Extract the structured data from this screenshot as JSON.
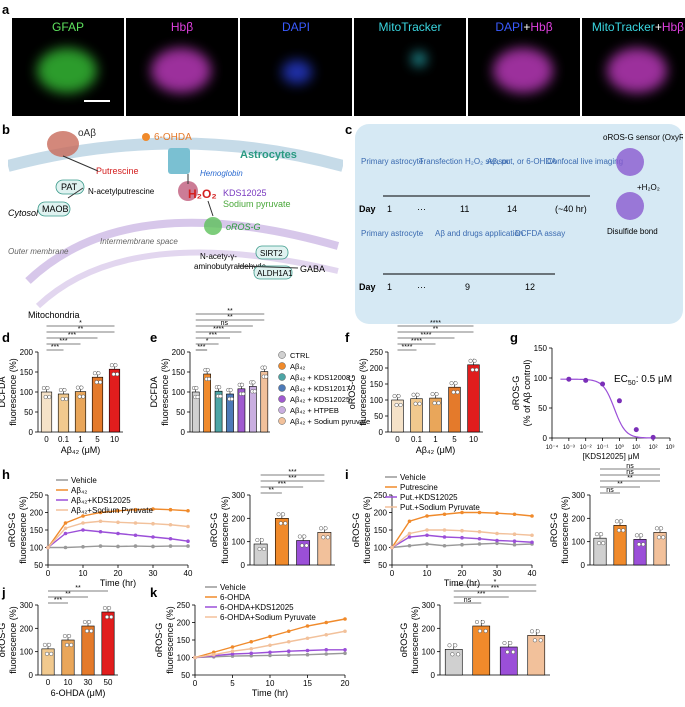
{
  "panel_labels": {
    "a": "a",
    "b": "b",
    "c": "c",
    "d": "d",
    "e": "e",
    "f": "f",
    "g": "g",
    "h": "h",
    "i": "i",
    "j": "j",
    "k": "k"
  },
  "panel_a": {
    "channels": [
      {
        "label": "GFAP",
        "color": "#5ee35e"
      },
      {
        "label": "Hbβ",
        "color": "#e040e0"
      },
      {
        "label": "DAPI",
        "color": "#3a5bff"
      },
      {
        "label": "MitoTracker",
        "color": "#3ad6e0"
      },
      {
        "label_a": "DAPI",
        "label_plus": "+",
        "label_b": "Hbβ"
      },
      {
        "label_a": "MitoTracker",
        "label_plus": "+",
        "label_b": "Hbβ"
      }
    ]
  },
  "panel_b": {
    "oabeta": "oAβ",
    "ohda": "6-OHDA",
    "astrocytes": "Astrocytes",
    "putrescine": "Putrescine",
    "pat": "PAT",
    "nacetyl": "N-acetylputrescine",
    "maob": "MAOB",
    "cytosol": "Cytosol",
    "hemoglobin": "Hemoglobin",
    "h2o2": "H₂O₂",
    "kds": "KDS12025",
    "pyruvate": "Sodium pyruvate",
    "orosg": "oROS-G",
    "outer_membrane": "Outer membrane",
    "ims": "Intermembrane space",
    "naab_1": "N-acety-γ-",
    "naab_2": "aminobutyraldehyde",
    "sirt2": "SIRT2",
    "aldh": "ALDH1A1",
    "gaba": "GABA",
    "mitochondria": "Mitochondria"
  },
  "panel_c": {
    "row1": [
      "Primary astrocyte",
      "Transfection H₂O₂ sensor",
      "Aβ, put, or 6-OHDA",
      "Confocal live imaging"
    ],
    "row1_days": [
      "1",
      "···",
      "11",
      "14",
      "(~40 hr)"
    ],
    "row2": [
      "Primary astrocyte",
      "Aβ and drugs application",
      "DCFDA assay"
    ],
    "row2_days": [
      "1",
      "···",
      "9",
      "12"
    ],
    "day_label": "Day",
    "sensor_title": "oROS-G sensor (OxyR)",
    "plus_h2o2": "+H₂O₂",
    "disulfide": "Disulfide bond"
  },
  "chart_data": [
    {
      "id": "d",
      "type": "bar",
      "ylabel_1": "DCFDA",
      "ylabel_2": "fluorescence (%)",
      "xlabel": "Aβ₄₂ (μM)",
      "categories": [
        "0",
        "0.1",
        "1",
        "5",
        "10"
      ],
      "values": [
        100,
        95,
        101,
        137,
        157
      ],
      "ylim": [
        0,
        200
      ],
      "yticks": [
        "0",
        "50",
        "100",
        "150",
        "200"
      ],
      "colors": [
        "#f5e2c8",
        "#f1c98e",
        "#e9a65a",
        "#e47a2b",
        "#e11d1d"
      ],
      "sig": [
        "***",
        "***",
        "***",
        "**",
        "*"
      ]
    },
    {
      "id": "e",
      "type": "bar",
      "ylabel_1": "DCFDA",
      "ylabel_2": "fluorescence (%)",
      "categories": [
        "CTRL",
        "Aβ₄₂",
        "Aβ₄₂ + KDS12008",
        "Aβ₄₂ + KDS12017",
        "Aβ₄₂ + KDS12025",
        "Aβ₄₂ + HTPEB",
        "Aβ₄₂ + Sodium pyruvate"
      ],
      "values": [
        100,
        145,
        102,
        95,
        108,
        114,
        151
      ],
      "ylim": [
        0,
        200
      ],
      "yticks": [
        "0",
        "50",
        "100",
        "150",
        "200"
      ],
      "colors": [
        "#d0d0d0",
        "#f08a2b",
        "#4da5a5",
        "#4d7ab8",
        "#a05ad0",
        "#c9aee0",
        "#f2c19b"
      ],
      "sig": [
        "***",
        "*",
        "***",
        "****",
        "ns",
        "**",
        "**"
      ]
    },
    {
      "id": "f",
      "type": "bar",
      "ylabel_1": "oROS-G",
      "ylabel_2": "fluorescence (%)",
      "xlabel": "Aβ₄₂ (μM)",
      "categories": [
        "0",
        "0.1",
        "1",
        "5",
        "10"
      ],
      "values": [
        100,
        104,
        106,
        140,
        210
      ],
      "ylim": [
        0,
        250
      ],
      "yticks": [
        "0",
        "50",
        "100",
        "150",
        "200",
        "250"
      ],
      "colors": [
        "#f5e2c8",
        "#f1c98e",
        "#e9a65a",
        "#e47a2b",
        "#e11d1d"
      ],
      "sig": [
        "****",
        "****",
        "****",
        "**",
        "****"
      ]
    },
    {
      "id": "g",
      "type": "line",
      "ylabel_1": "oROS-G",
      "ylabel_2": "(% of Aβ control)",
      "xlabel": "[KDS12025] μM",
      "x_log": [
        -3,
        -2,
        -1,
        0,
        1,
        2
      ],
      "values": [
        98,
        96,
        90,
        62,
        14,
        1
      ],
      "ylim": [
        0,
        150
      ],
      "yticks": [
        "0",
        "50",
        "100",
        "150"
      ],
      "xticks": [
        "10⁻⁴",
        "10⁻³",
        "10⁻²",
        "10⁻¹",
        "10⁰",
        "10¹",
        "10²",
        "10³"
      ],
      "annotation_1": "EC",
      "annotation_sub": "50",
      "annotation_2": ": 0.5 μM"
    },
    {
      "id": "h_time",
      "type": "line",
      "ylabel_1": "oROS-G",
      "ylabel_2": "fluorescence (%)",
      "xlabel": "Time (hr)",
      "x": [
        0,
        5,
        10,
        15,
        20,
        25,
        30,
        35,
        40
      ],
      "ylim": [
        50,
        250
      ],
      "yticks": [
        "50",
        "100",
        "150",
        "200",
        "250"
      ],
      "xticks": [
        "0",
        "10",
        "20",
        "30",
        "40"
      ],
      "series": [
        {
          "name": "Vehicle",
          "color": "#999999",
          "values": [
            100,
            100,
            102,
            104,
            103,
            104,
            103,
            104,
            104
          ]
        },
        {
          "name": "Aβ₄₂",
          "color": "#f08a2b",
          "values": [
            100,
            170,
            190,
            200,
            205,
            208,
            210,
            208,
            205
          ]
        },
        {
          "name": "Aβ₄₂+KDS12025",
          "color": "#9b4fd8",
          "values": [
            100,
            140,
            150,
            145,
            140,
            135,
            130,
            125,
            118
          ]
        },
        {
          "name": "Aβ₄₂+Sodium Pyruvate",
          "color": "#f2c19b",
          "values": [
            100,
            155,
            170,
            175,
            172,
            170,
            168,
            165,
            160
          ]
        }
      ]
    },
    {
      "id": "h_bar",
      "type": "bar",
      "ylabel_1": "oROS-G",
      "ylabel_2": "fluorescence (%)",
      "categories": [
        "Vehicle",
        "Aβ₄₂",
        "Aβ₄₂+KDS12025",
        "Aβ₄₂+Sodium Pyruvate"
      ],
      "values": [
        90,
        200,
        105,
        140
      ],
      "ylim": [
        0,
        300
      ],
      "yticks": [
        "0",
        "100",
        "200",
        "300"
      ],
      "colors": [
        "#d0d0d0",
        "#f08a2b",
        "#9b4fd8",
        "#f2c19b"
      ],
      "sig": [
        "**",
        "***",
        "***",
        "***"
      ]
    },
    {
      "id": "i_time",
      "type": "line",
      "ylabel_1": "oROS-G",
      "ylabel_2": "fluorescence (%)",
      "xlabel": "Time (hr)",
      "x": [
        0,
        5,
        10,
        15,
        20,
        25,
        30,
        35,
        40
      ],
      "ylim": [
        50,
        250
      ],
      "yticks": [
        "50",
        "100",
        "150",
        "200",
        "250"
      ],
      "xticks": [
        "0",
        "10",
        "20",
        "30",
        "40"
      ],
      "series": [
        {
          "name": "Vehicle",
          "color": "#999999",
          "values": [
            100,
            105,
            110,
            105,
            108,
            110,
            112,
            108,
            110
          ]
        },
        {
          "name": "Putrescine",
          "color": "#f08a2b",
          "values": [
            100,
            175,
            190,
            195,
            200,
            200,
            198,
            195,
            190
          ]
        },
        {
          "name": "Put.+KDS12025",
          "color": "#9b4fd8",
          "values": [
            100,
            130,
            135,
            130,
            128,
            125,
            120,
            118,
            115
          ]
        },
        {
          "name": "Put.+Sodium Pyruvate",
          "color": "#f2c19b",
          "values": [
            100,
            140,
            150,
            150,
            148,
            145,
            140,
            138,
            135
          ]
        }
      ]
    },
    {
      "id": "i_bar",
      "type": "bar",
      "ylabel_1": "oROS-G",
      "ylabel_2": "fluorescence (%)",
      "categories": [
        "Vehicle",
        "Putrescine",
        "Put.+KDS12025",
        "Put.+Sodium Pyruvate"
      ],
      "values": [
        115,
        170,
        110,
        140
      ],
      "ylim": [
        0,
        300
      ],
      "yticks": [
        "0",
        "100",
        "200",
        "300"
      ],
      "colors": [
        "#d0d0d0",
        "#f08a2b",
        "#9b4fd8",
        "#f2c19b"
      ],
      "sig": [
        "ns",
        "**",
        "**",
        "ns",
        "ns"
      ]
    },
    {
      "id": "j",
      "type": "bar",
      "ylabel_1": "oROS-G",
      "ylabel_2": "fluorescence (%)",
      "xlabel": "6-OHDA (μM)",
      "categories": [
        "0",
        "10",
        "30",
        "50"
      ],
      "values": [
        112,
        150,
        210,
        270
      ],
      "ylim": [
        0,
        300
      ],
      "yticks": [
        "0",
        "100",
        "200",
        "300"
      ],
      "colors": [
        "#f1c98e",
        "#e9a65a",
        "#e47a2b",
        "#e11d1d"
      ],
      "sig": [
        "***",
        "**",
        "**"
      ]
    },
    {
      "id": "k_time",
      "type": "line",
      "ylabel_1": "oROS-G",
      "ylabel_2": "fluorescence (%)",
      "xlabel": "Time (hr)",
      "x": [
        0,
        2.5,
        5,
        7.5,
        10,
        12.5,
        15,
        17.5,
        20
      ],
      "ylim": [
        50,
        250
      ],
      "yticks": [
        "50",
        "100",
        "150",
        "200",
        "250"
      ],
      "xticks": [
        "0",
        "5",
        "10",
        "15",
        "20"
      ],
      "series": [
        {
          "name": "Vehicle",
          "color": "#999999",
          "values": [
            100,
            102,
            104,
            105,
            106,
            107,
            108,
            110,
            112
          ]
        },
        {
          "name": "6-OHDA",
          "color": "#f08a2b",
          "values": [
            100,
            115,
            130,
            145,
            160,
            175,
            190,
            200,
            210
          ]
        },
        {
          "name": "6-OHDA+KDS12025",
          "color": "#9b4fd8",
          "values": [
            100,
            105,
            110,
            112,
            115,
            118,
            120,
            122,
            122
          ]
        },
        {
          "name": "6-OHDA+Sodium Pyruvate",
          "color": "#f2c19b",
          "values": [
            100,
            108,
            118,
            125,
            135,
            145,
            155,
            165,
            175
          ]
        }
      ]
    },
    {
      "id": "k_bar",
      "type": "bar",
      "ylabel_1": "oROS-G",
      "ylabel_2": "fluorescence (%)",
      "categories": [
        "Vehicle",
        "6-OHDA",
        "6-OHDA+KDS12025",
        "6-OHDA+Sodium Pyruvate"
      ],
      "values": [
        110,
        210,
        120,
        170
      ],
      "ylim": [
        0,
        300
      ],
      "yticks": [
        "0",
        "100",
        "200",
        "300"
      ],
      "colors": [
        "#d0d0d0",
        "#f08a2b",
        "#9b4fd8",
        "#f2c19b"
      ],
      "sig": [
        "ns",
        "***",
        "***",
        "*"
      ]
    }
  ]
}
